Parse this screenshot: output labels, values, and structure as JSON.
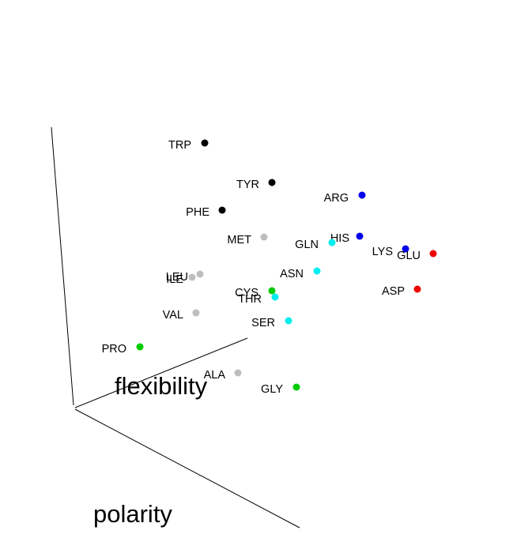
{
  "chart_data": {
    "type": "scatter",
    "projection": "3d",
    "axis_titles": {
      "x": "polarity",
      "y": "flexibility",
      "z": ""
    },
    "group_colors": {
      "black": "#000000",
      "blue": "#0000ee",
      "red": "#ee0000",
      "cyan": "#00eeee",
      "green": "#00cc00",
      "gray": "#bebebe"
    },
    "points": [
      {
        "label": "TRP",
        "group": "black"
      },
      {
        "label": "TYR",
        "group": "black"
      },
      {
        "label": "PHE",
        "group": "black"
      },
      {
        "label": "ARG",
        "group": "blue"
      },
      {
        "label": "HIS",
        "group": "blue"
      },
      {
        "label": "LYS",
        "group": "blue"
      },
      {
        "label": "GLU",
        "group": "red"
      },
      {
        "label": "ASP",
        "group": "red"
      },
      {
        "label": "GLN",
        "group": "cyan"
      },
      {
        "label": "ASN",
        "group": "cyan"
      },
      {
        "label": "THR",
        "group": "cyan"
      },
      {
        "label": "SER",
        "group": "cyan"
      },
      {
        "label": "CYS",
        "group": "green"
      },
      {
        "label": "PRO",
        "group": "green"
      },
      {
        "label": "GLY",
        "group": "green"
      },
      {
        "label": "MET",
        "group": "gray"
      },
      {
        "label": "LEU",
        "group": "gray"
      },
      {
        "label": "ILE",
        "group": "gray"
      },
      {
        "label": "VAL",
        "group": "gray"
      },
      {
        "label": "ALA",
        "group": "gray"
      }
    ]
  }
}
